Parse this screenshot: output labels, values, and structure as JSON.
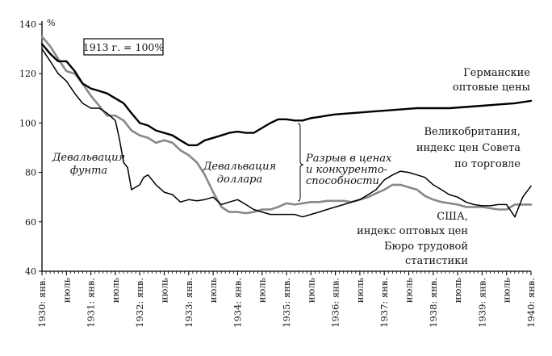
{
  "chart_data": {
    "type": "line",
    "title": "",
    "unit_label": "%",
    "base_note": "1913 г. = 100%",
    "ylim": [
      40,
      140
    ],
    "yticks": [
      40,
      60,
      80,
      100,
      120,
      140
    ],
    "xlim": [
      1930.0,
      1940.0
    ],
    "xticks": [
      {
        "x": 1930.0,
        "label": "1930: янв."
      },
      {
        "x": 1930.5,
        "label": "июль"
      },
      {
        "x": 1931.0,
        "label": "1931: янв."
      },
      {
        "x": 1931.5,
        "label": "июль"
      },
      {
        "x": 1932.0,
        "label": "1932: янв."
      },
      {
        "x": 1932.5,
        "label": "июль"
      },
      {
        "x": 1933.0,
        "label": "1933: янв."
      },
      {
        "x": 1933.5,
        "label": "июль"
      },
      {
        "x": 1934.0,
        "label": "1934: янв."
      },
      {
        "x": 1934.5,
        "label": "июль"
      },
      {
        "x": 1935.0,
        "label": "1935: янв."
      },
      {
        "x": 1935.5,
        "label": "июль"
      },
      {
        "x": 1936.0,
        "label": "1936: янв."
      },
      {
        "x": 1936.5,
        "label": "июль"
      },
      {
        "x": 1937.0,
        "label": "1937: янв."
      },
      {
        "x": 1937.5,
        "label": "июль"
      },
      {
        "x": 1938.0,
        "label": "1938: янв."
      },
      {
        "x": 1938.5,
        "label": "июль"
      },
      {
        "x": 1939.0,
        "label": "1939: янв."
      },
      {
        "x": 1939.5,
        "label": "июль"
      },
      {
        "x": 1940.0,
        "label": "1940: янв."
      }
    ],
    "series": [
      {
        "name": "Германские оптовые цены",
        "label_lines": [
          "Германские",
          "оптовые цены"
        ],
        "color": "#000000",
        "stroke_width": 2.4,
        "x": [
          1930.0,
          1930.17,
          1930.33,
          1930.5,
          1930.67,
          1930.83,
          1931.0,
          1931.17,
          1931.33,
          1931.5,
          1931.67,
          1931.83,
          1932.0,
          1932.17,
          1932.33,
          1932.5,
          1932.67,
          1932.83,
          1933.0,
          1933.17,
          1933.33,
          1933.5,
          1933.67,
          1933.83,
          1934.0,
          1934.17,
          1934.33,
          1934.5,
          1934.67,
          1934.83,
          1935.0,
          1935.17,
          1935.33,
          1935.5,
          1935.67,
          1935.83,
          1936.0,
          1936.33,
          1936.67,
          1937.0,
          1937.33,
          1937.67,
          1938.0,
          1938.33,
          1938.67,
          1939.0,
          1939.33,
          1939.67,
          1940.0
        ],
        "y": [
          132,
          128,
          125,
          125,
          121,
          116,
          114,
          113,
          112,
          110,
          108,
          104,
          100,
          99,
          97,
          96,
          95,
          93,
          91,
          91,
          93,
          94,
          95,
          96,
          96.5,
          96,
          96,
          98,
          100,
          101.5,
          101.5,
          101,
          101,
          102,
          102.5,
          103,
          103.5,
          104,
          104.5,
          105,
          105.5,
          106,
          106,
          106,
          106.5,
          107,
          107.5,
          108,
          109
        ]
      },
      {
        "name": "Великобритания, индекс цен Совета по торговле",
        "label_lines": [
          "Великобритания,",
          "индекс цен Совета",
          "по торговле"
        ],
        "color": "#000000",
        "stroke_width": 1.5,
        "x": [
          1930.0,
          1930.17,
          1930.33,
          1930.5,
          1930.67,
          1930.83,
          1931.0,
          1931.17,
          1931.33,
          1931.5,
          1931.58,
          1931.67,
          1931.75,
          1931.83,
          1932.0,
          1932.08,
          1932.17,
          1932.33,
          1932.5,
          1932.67,
          1932.83,
          1933.0,
          1933.17,
          1933.33,
          1933.5,
          1933.67,
          1933.83,
          1934.0,
          1934.17,
          1934.33,
          1934.5,
          1934.67,
          1934.83,
          1935.0,
          1935.17,
          1935.33,
          1935.5,
          1935.67,
          1935.83,
          1936.0,
          1936.17,
          1936.33,
          1936.5,
          1936.67,
          1936.83,
          1937.0,
          1937.17,
          1937.33,
          1937.5,
          1937.67,
          1937.83,
          1938.0,
          1938.17,
          1938.33,
          1938.5,
          1938.67,
          1938.83,
          1939.0,
          1939.17,
          1939.33,
          1939.5,
          1939.67,
          1939.83,
          1940.0
        ],
        "y": [
          130,
          125,
          120,
          117,
          112,
          108,
          106,
          106,
          104,
          101,
          94,
          84,
          82,
          73,
          75,
          78,
          79,
          75,
          72,
          71,
          68,
          69,
          68.5,
          69,
          70,
          67,
          68,
          69,
          67,
          65,
          64,
          63,
          63,
          63,
          63,
          62,
          63,
          64,
          65,
          66,
          67,
          68,
          69,
          71,
          73,
          77,
          79,
          80.5,
          80,
          79,
          78,
          75,
          73,
          71,
          70,
          68,
          67,
          66.5,
          66.5,
          67,
          67,
          62,
          70,
          74.5
        ]
      },
      {
        "name": "США, индекс оптовых цен Бюро трудовой статистики",
        "label_lines": [
          "США,",
          "индекс оптовых цен",
          "Бюро трудовой",
          "статистики"
        ],
        "color": "#888888",
        "stroke_width": 2.6,
        "x": [
          1930.0,
          1930.17,
          1930.33,
          1930.5,
          1930.67,
          1930.83,
          1931.0,
          1931.17,
          1931.33,
          1931.5,
          1931.67,
          1931.83,
          1932.0,
          1932.17,
          1932.33,
          1932.5,
          1932.67,
          1932.83,
          1933.0,
          1933.17,
          1933.33,
          1933.5,
          1933.67,
          1933.83,
          1934.0,
          1934.17,
          1934.33,
          1934.5,
          1934.67,
          1934.83,
          1935.0,
          1935.17,
          1935.33,
          1935.5,
          1935.67,
          1935.83,
          1936.0,
          1936.17,
          1936.33,
          1936.5,
          1936.67,
          1936.83,
          1937.0,
          1937.17,
          1937.33,
          1937.5,
          1937.67,
          1937.83,
          1938.0,
          1938.17,
          1938.33,
          1938.5,
          1938.67,
          1938.83,
          1939.0,
          1939.17,
          1939.33,
          1939.5,
          1939.67,
          1939.83,
          1940.0
        ],
        "y": [
          135,
          131,
          126,
          121,
          120,
          116,
          111,
          107,
          103,
          103,
          101,
          97,
          95,
          94,
          92,
          93,
          92,
          89,
          87,
          84,
          79,
          72,
          66,
          64,
          64,
          63.5,
          64,
          65,
          65,
          66,
          67.5,
          67,
          67.5,
          68,
          68,
          68.5,
          68.5,
          68.5,
          68,
          69,
          70,
          71.5,
          73,
          75,
          75,
          74,
          73,
          70.5,
          69,
          68,
          67.5,
          67,
          66,
          66,
          66,
          65.5,
          65,
          65,
          67,
          67,
          67
        ]
      }
    ],
    "annotations": {
      "pound": [
        "Девальвация",
        "фунта"
      ],
      "dollar": [
        "Девальвация",
        "доллара"
      ],
      "gap": [
        "Разрыв в ценах",
        "и конкуренто-",
        "способности"
      ]
    }
  }
}
